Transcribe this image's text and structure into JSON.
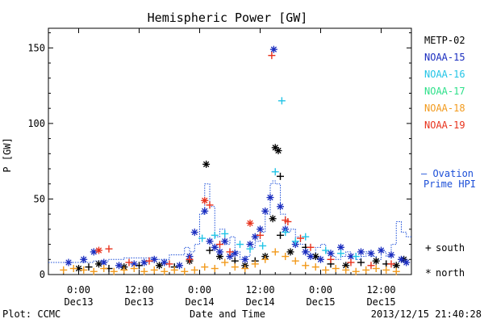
{
  "chart_data": {
    "type": "scatter",
    "title": "Hemispheric Power [GW]",
    "ylabel": "P [GW]",
    "xlabel": "Date and Time",
    "footer_left": "Plot: CCMC",
    "footer_right": "2013/12/15 21:40:28",
    "xlim": [
      -6,
      66
    ],
    "ylim": [
      0,
      163
    ],
    "y_ticks": [
      0,
      50,
      100,
      150
    ],
    "x_ticks": [
      {
        "x": 0,
        "line1": "0:00",
        "line2": "Dec13"
      },
      {
        "x": 12,
        "line1": "12:00",
        "line2": "Dec13"
      },
      {
        "x": 24,
        "line1": "0:00",
        "line2": "Dec14"
      },
      {
        "x": 36,
        "line1": "12:00",
        "line2": "Dec14"
      },
      {
        "x": 48,
        "line1": "0:00",
        "line2": "Dec15"
      },
      {
        "x": 60,
        "line1": "12:00",
        "line2": "Dec15"
      }
    ],
    "grid": false,
    "legend_position": "right",
    "legend": [
      {
        "name": "METP-02",
        "color": "#000000"
      },
      {
        "name": "NOAA-15",
        "color": "#1a2dbf"
      },
      {
        "name": "NOAA-16",
        "color": "#22c4e6"
      },
      {
        "name": "NOAA-17",
        "color": "#2ee08a"
      },
      {
        "name": "NOAA-18",
        "color": "#f29a1c"
      },
      {
        "name": "NOAA-19",
        "color": "#e8321c"
      }
    ],
    "ovation_label": [
      "– Ovation",
      "Prime HPI"
    ],
    "ovation_color": "#1c4fd8",
    "marker_legend": [
      {
        "symbol": "+",
        "label": "south"
      },
      {
        "symbol": "*",
        "label": "north"
      }
    ],
    "ovation_step": {
      "x": [
        -6,
        -3,
        0,
        3,
        6,
        9,
        12,
        15,
        18,
        21,
        22,
        23,
        24,
        25,
        26,
        27,
        28,
        29,
        30,
        31,
        32,
        33,
        34,
        35,
        36,
        37,
        38,
        38.5,
        39,
        40,
        41,
        42,
        43,
        44,
        45,
        46,
        47,
        48,
        49,
        50,
        51,
        52,
        53,
        54,
        55,
        56,
        57,
        58,
        59,
        60,
        61,
        62,
        63,
        64,
        65,
        66
      ],
      "y": [
        8,
        8,
        8,
        9,
        10,
        11,
        11,
        10,
        13,
        18,
        15,
        20,
        40,
        60,
        45,
        25,
        30,
        20,
        25,
        15,
        10,
        12,
        18,
        22,
        28,
        40,
        60,
        62,
        60,
        40,
        28,
        30,
        25,
        20,
        15,
        12,
        18,
        20,
        15,
        12,
        10,
        12,
        15,
        12,
        10,
        12,
        15,
        12,
        10,
        15,
        12,
        20,
        35,
        28,
        25,
        25
      ]
    },
    "series": [
      {
        "name": "METP-02",
        "color": "#000000",
        "points": [
          {
            "x": 0,
            "y": 4,
            "m": "*"
          },
          {
            "x": 2,
            "y": 5,
            "m": "+"
          },
          {
            "x": 4,
            "y": 7,
            "m": "*"
          },
          {
            "x": 6,
            "y": 4,
            "m": "+"
          },
          {
            "x": 9,
            "y": 5,
            "m": "*"
          },
          {
            "x": 12,
            "y": 6,
            "m": "+"
          },
          {
            "x": 16,
            "y": 6,
            "m": "*"
          },
          {
            "x": 19,
            "y": 5,
            "m": "+"
          },
          {
            "x": 22,
            "y": 9,
            "m": "*"
          },
          {
            "x": 25.3,
            "y": 73,
            "m": "*"
          },
          {
            "x": 26,
            "y": 16,
            "m": "+"
          },
          {
            "x": 28,
            "y": 12,
            "m": "*"
          },
          {
            "x": 31,
            "y": 9,
            "m": "+"
          },
          {
            "x": 33,
            "y": 6,
            "m": "*"
          },
          {
            "x": 35,
            "y": 9,
            "m": "+"
          },
          {
            "x": 37,
            "y": 12,
            "m": "*"
          },
          {
            "x": 38.5,
            "y": 37,
            "m": "*"
          },
          {
            "x": 39,
            "y": 84,
            "m": "*"
          },
          {
            "x": 39.6,
            "y": 82,
            "m": "*"
          },
          {
            "x": 40,
            "y": 65,
            "m": "+"
          },
          {
            "x": 40,
            "y": 26,
            "m": "+"
          },
          {
            "x": 42,
            "y": 15,
            "m": "*"
          },
          {
            "x": 45,
            "y": 18,
            "m": "+"
          },
          {
            "x": 47,
            "y": 12,
            "m": "*"
          },
          {
            "x": 50,
            "y": 7,
            "m": "+"
          },
          {
            "x": 53,
            "y": 6,
            "m": "*"
          },
          {
            "x": 56,
            "y": 8,
            "m": "+"
          },
          {
            "x": 59,
            "y": 9,
            "m": "*"
          },
          {
            "x": 61,
            "y": 7,
            "m": "+"
          },
          {
            "x": 63,
            "y": 6,
            "m": "*"
          },
          {
            "x": 64.5,
            "y": 10,
            "m": "*"
          }
        ]
      },
      {
        "name": "NOAA-15",
        "color": "#1a2dbf",
        "points": [
          {
            "x": -2,
            "y": 8,
            "m": "*"
          },
          {
            "x": 1,
            "y": 10,
            "m": "*"
          },
          {
            "x": 3,
            "y": 15,
            "m": "*"
          },
          {
            "x": 5,
            "y": 8,
            "m": "*"
          },
          {
            "x": 8,
            "y": 6,
            "m": "*"
          },
          {
            "x": 11,
            "y": 7,
            "m": "*"
          },
          {
            "x": 13,
            "y": 8,
            "m": "*"
          },
          {
            "x": 15,
            "y": 10,
            "m": "*"
          },
          {
            "x": 17,
            "y": 8,
            "m": "*"
          },
          {
            "x": 20,
            "y": 6,
            "m": "*"
          },
          {
            "x": 22,
            "y": 12,
            "m": "*"
          },
          {
            "x": 23,
            "y": 28,
            "m": "*"
          },
          {
            "x": 25,
            "y": 42,
            "m": "*"
          },
          {
            "x": 26,
            "y": 22,
            "m": "*"
          },
          {
            "x": 27,
            "y": 18,
            "m": "*"
          },
          {
            "x": 28,
            "y": 15,
            "m": "*"
          },
          {
            "x": 29,
            "y": 22,
            "m": "*"
          },
          {
            "x": 30,
            "y": 12,
            "m": "*"
          },
          {
            "x": 31,
            "y": 14,
            "m": "*"
          },
          {
            "x": 33,
            "y": 10,
            "m": "*"
          },
          {
            "x": 34,
            "y": 20,
            "m": "*"
          },
          {
            "x": 35,
            "y": 25,
            "m": "*"
          },
          {
            "x": 36,
            "y": 30,
            "m": "*"
          },
          {
            "x": 37,
            "y": 42,
            "m": "*"
          },
          {
            "x": 38,
            "y": 51,
            "m": "*"
          },
          {
            "x": 38.7,
            "y": 149,
            "m": "*"
          },
          {
            "x": 40,
            "y": 45,
            "m": "*"
          },
          {
            "x": 41,
            "y": 30,
            "m": "*"
          },
          {
            "x": 43,
            "y": 20,
            "m": "*"
          },
          {
            "x": 45,
            "y": 15,
            "m": "*"
          },
          {
            "x": 46,
            "y": 12,
            "m": "*"
          },
          {
            "x": 48,
            "y": 10,
            "m": "*"
          },
          {
            "x": 50,
            "y": 14,
            "m": "*"
          },
          {
            "x": 52,
            "y": 18,
            "m": "*"
          },
          {
            "x": 54,
            "y": 12,
            "m": "*"
          },
          {
            "x": 56,
            "y": 15,
            "m": "*"
          },
          {
            "x": 58,
            "y": 14,
            "m": "*"
          },
          {
            "x": 60,
            "y": 16,
            "m": "*"
          },
          {
            "x": 62,
            "y": 13,
            "m": "*"
          },
          {
            "x": 64,
            "y": 10,
            "m": "*"
          },
          {
            "x": 65,
            "y": 8,
            "m": "*"
          }
        ]
      },
      {
        "name": "NOAA-16",
        "color": "#22c4e6",
        "points": [
          {
            "x": 24.5,
            "y": 24,
            "m": "+"
          },
          {
            "x": 27,
            "y": 26,
            "m": "+"
          },
          {
            "x": 29,
            "y": 27,
            "m": "+"
          },
          {
            "x": 32,
            "y": 20,
            "m": "+"
          },
          {
            "x": 34,
            "y": 17,
            "m": "+"
          },
          {
            "x": 36.5,
            "y": 19,
            "m": "+"
          },
          {
            "x": 39,
            "y": 68,
            "m": "+"
          },
          {
            "x": 40.3,
            "y": 115,
            "m": "+"
          },
          {
            "x": 41,
            "y": 28,
            "m": "+"
          },
          {
            "x": 43,
            "y": 22,
            "m": "+"
          },
          {
            "x": 45,
            "y": 25,
            "m": "+"
          },
          {
            "x": 49,
            "y": 16,
            "m": "+"
          },
          {
            "x": 52,
            "y": 14,
            "m": "+"
          },
          {
            "x": 55,
            "y": 12,
            "m": "+"
          }
        ]
      },
      {
        "name": "NOAA-17",
        "color": "#2ee08a",
        "points": []
      },
      {
        "name": "NOAA-18",
        "color": "#f29a1c",
        "points": [
          {
            "x": -3,
            "y": 3,
            "m": "+"
          },
          {
            "x": -1,
            "y": 4,
            "m": "+"
          },
          {
            "x": 1,
            "y": 3,
            "m": "+"
          },
          {
            "x": 3,
            "y": 2,
            "m": "+"
          },
          {
            "x": 5,
            "y": 4,
            "m": "+"
          },
          {
            "x": 7,
            "y": 2,
            "m": "+"
          },
          {
            "x": 9,
            "y": 3,
            "m": "+"
          },
          {
            "x": 11,
            "y": 4,
            "m": "+"
          },
          {
            "x": 13,
            "y": 2,
            "m": "+"
          },
          {
            "x": 15,
            "y": 3,
            "m": "+"
          },
          {
            "x": 17,
            "y": 2,
            "m": "+"
          },
          {
            "x": 19,
            "y": 3,
            "m": "+"
          },
          {
            "x": 21,
            "y": 2,
            "m": "+"
          },
          {
            "x": 23,
            "y": 3,
            "m": "+"
          },
          {
            "x": 25,
            "y": 5,
            "m": "+"
          },
          {
            "x": 27,
            "y": 4,
            "m": "+"
          },
          {
            "x": 29,
            "y": 8,
            "m": "+"
          },
          {
            "x": 31,
            "y": 5,
            "m": "+"
          },
          {
            "x": 33,
            "y": 4,
            "m": "+"
          },
          {
            "x": 35,
            "y": 7,
            "m": "+"
          },
          {
            "x": 37,
            "y": 10,
            "m": "+"
          },
          {
            "x": 39,
            "y": 15,
            "m": "+"
          },
          {
            "x": 41,
            "y": 12,
            "m": "+"
          },
          {
            "x": 43,
            "y": 9,
            "m": "+"
          },
          {
            "x": 45,
            "y": 6,
            "m": "+"
          },
          {
            "x": 47,
            "y": 5,
            "m": "+"
          },
          {
            "x": 49,
            "y": 3,
            "m": "+"
          },
          {
            "x": 51,
            "y": 4,
            "m": "+"
          },
          {
            "x": 53,
            "y": 3,
            "m": "+"
          },
          {
            "x": 55,
            "y": 2,
            "m": "+"
          },
          {
            "x": 57,
            "y": 3,
            "m": "+"
          },
          {
            "x": 59,
            "y": 4,
            "m": "+"
          },
          {
            "x": 61,
            "y": 3,
            "m": "+"
          },
          {
            "x": 63,
            "y": 2,
            "m": "+"
          }
        ]
      },
      {
        "name": "NOAA-19",
        "color": "#e8321c",
        "points": [
          {
            "x": 4,
            "y": 16,
            "m": "*"
          },
          {
            "x": 6,
            "y": 17,
            "m": "+"
          },
          {
            "x": 10,
            "y": 8,
            "m": "+"
          },
          {
            "x": 14,
            "y": 9,
            "m": "+"
          },
          {
            "x": 18,
            "y": 7,
            "m": "+"
          },
          {
            "x": 22,
            "y": 10,
            "m": "+"
          },
          {
            "x": 25,
            "y": 49,
            "m": "*"
          },
          {
            "x": 26,
            "y": 46,
            "m": "+"
          },
          {
            "x": 28,
            "y": 20,
            "m": "+"
          },
          {
            "x": 30,
            "y": 15,
            "m": "+"
          },
          {
            "x": 34,
            "y": 34,
            "m": "*"
          },
          {
            "x": 36,
            "y": 26,
            "m": "+"
          },
          {
            "x": 38.3,
            "y": 145,
            "m": "+"
          },
          {
            "x": 41,
            "y": 36,
            "m": "+"
          },
          {
            "x": 41.5,
            "y": 35,
            "m": "+"
          },
          {
            "x": 44,
            "y": 24,
            "m": "+"
          },
          {
            "x": 46,
            "y": 18,
            "m": "+"
          },
          {
            "x": 50,
            "y": 10,
            "m": "+"
          },
          {
            "x": 54,
            "y": 8,
            "m": "+"
          },
          {
            "x": 58,
            "y": 6,
            "m": "+"
          },
          {
            "x": 62,
            "y": 7,
            "m": "+"
          }
        ]
      }
    ]
  }
}
